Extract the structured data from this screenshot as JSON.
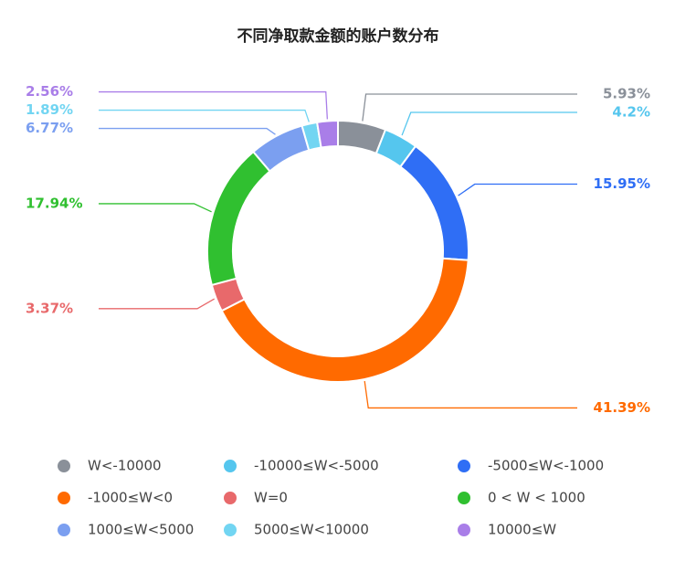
{
  "chart_data": {
    "type": "donut",
    "title": "不同净取款金额的账户数分布",
    "categories": [
      "W<-10000",
      "-10000≤W<-5000",
      "-5000≤W<-1000",
      "-1000≤W<0",
      "W=0",
      "0 < W < 1000",
      "1000≤W<5000",
      "5000≤W<10000",
      "10000≤W"
    ],
    "values": [
      5.93,
      4.2,
      15.95,
      41.39,
      3.37,
      17.94,
      6.77,
      1.89,
      2.56
    ],
    "value_labels": [
      "5.93%",
      "4.2%",
      "15.95%",
      "41.39%",
      "3.37%",
      "17.94%",
      "6.77%",
      "1.89%",
      "2.56%"
    ],
    "colors": [
      "#8a9099",
      "#55c6ee",
      "#2f6ef5",
      "#ff6a00",
      "#e8696b",
      "#30c030",
      "#7b9ff0",
      "#72d5f2",
      "#a97ee8"
    ]
  }
}
